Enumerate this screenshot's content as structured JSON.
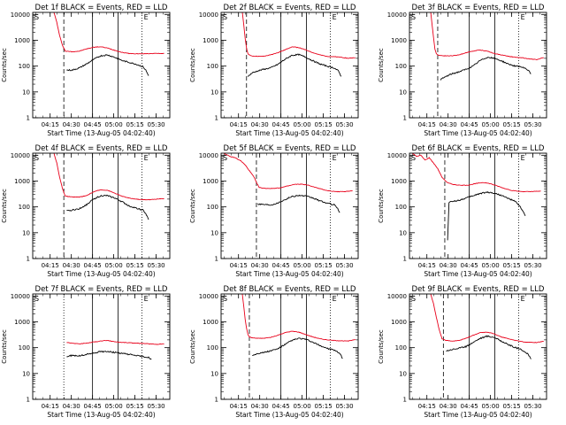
{
  "figure": {
    "colors": {
      "events": "#000000",
      "lld": "#e8001a",
      "axes": "#000000",
      "background": "#ffffff"
    },
    "common": {
      "ylabel": "Counts/sec",
      "xlabel": "Start Time (13-Aug-05 04:02:40)",
      "x_tick_labels": [
        "04:15",
        "04:30",
        "04:45",
        "05:00",
        "05:15",
        "05:30"
      ],
      "x_tick_minutes": [
        12.33,
        27.33,
        42.33,
        57.33,
        72.33,
        87.33
      ],
      "y_tick_labels": [
        "1",
        "10",
        "100",
        "1000",
        "10000"
      ],
      "y_tick_values": [
        1,
        10,
        100,
        1000,
        10000
      ],
      "xlim_minutes": [
        0,
        97
      ],
      "ylim": [
        1,
        12000
      ],
      "yscale": "log",
      "corner_marks": [
        "S",
        "E"
      ],
      "vertical_marker_minutes": {
        "solid": [
          42.33,
          60.33
        ],
        "dotted": [
          77.33
        ]
      }
    }
  },
  "chart_data": [
    {
      "type": "line",
      "title": "Det 1f BLACK = Events, RED = LLD",
      "x_unit": "minutes after 04:02:40",
      "yscale": "log",
      "markers": {
        "dashed": 22
      },
      "series": [
        {
          "name": "LLD",
          "color": "#e8001a",
          "x": [
            15,
            17,
            19,
            21,
            23,
            28,
            33,
            38,
            43,
            48,
            53,
            58,
            63,
            68,
            73,
            78,
            83,
            88,
            93
          ],
          "y": [
            12000,
            5000,
            1500,
            650,
            380,
            360,
            380,
            460,
            540,
            560,
            500,
            410,
            340,
            310,
            300,
            300,
            305,
            310,
            310
          ]
        },
        {
          "name": "Events",
          "color": "#000000",
          "x": [
            24,
            28,
            33,
            38,
            43,
            48,
            53,
            58,
            63,
            68,
            73,
            78,
            80,
            82
          ],
          "y": [
            70,
            70,
            85,
            120,
            180,
            250,
            270,
            220,
            165,
            140,
            120,
            95,
            70,
            42
          ]
        }
      ]
    },
    {
      "type": "line",
      "title": "Det 2f BLACK = Events, RED = LLD",
      "x_unit": "minutes after 04:02:40",
      "yscale": "log",
      "markers": {
        "dashed": 18
      },
      "series": [
        {
          "name": "LLD",
          "color": "#e8001a",
          "x": [
            15,
            16,
            17,
            18,
            19,
            21,
            25,
            30,
            35,
            40,
            45,
            50,
            55,
            60,
            65,
            70,
            75,
            80,
            85,
            90,
            95
          ],
          "y": [
            12000,
            4000,
            1200,
            500,
            300,
            250,
            240,
            240,
            270,
            330,
            420,
            560,
            520,
            420,
            330,
            270,
            240,
            230,
            220,
            200,
            215
          ]
        },
        {
          "name": "Events",
          "color": "#000000",
          "x": [
            19,
            22,
            26,
            30,
            35,
            40,
            45,
            50,
            55,
            60,
            65,
            70,
            75,
            80,
            83,
            85
          ],
          "y": [
            40,
            55,
            65,
            75,
            85,
            115,
            180,
            260,
            280,
            220,
            160,
            120,
            100,
            85,
            65,
            40
          ]
        }
      ]
    },
    {
      "type": "line",
      "title": "Det 3f BLACK = Events, RED = LLD",
      "x_unit": "minutes after 04:02:40",
      "yscale": "log",
      "markers": {
        "dashed": 20
      },
      "series": [
        {
          "name": "LLD",
          "color": "#e8001a",
          "x": [
            15,
            16,
            17,
            18,
            19,
            21,
            25,
            30,
            35,
            40,
            45,
            50,
            55,
            60,
            65,
            70,
            75,
            80,
            85,
            90,
            95
          ],
          "y": [
            12000,
            4000,
            1300,
            450,
            300,
            260,
            250,
            250,
            270,
            330,
            380,
            420,
            380,
            310,
            270,
            240,
            220,
            210,
            190,
            180,
            215
          ]
        },
        {
          "name": "Events",
          "color": "#000000",
          "x": [
            22,
            26,
            30,
            35,
            40,
            45,
            50,
            55,
            60,
            65,
            70,
            75,
            80,
            84,
            86
          ],
          "y": [
            30,
            40,
            50,
            60,
            75,
            100,
            165,
            220,
            200,
            160,
            120,
            100,
            90,
            70,
            50
          ]
        }
      ]
    },
    {
      "type": "line",
      "title": "Det 4f BLACK = Events, RED = LLD",
      "x_unit": "minutes after 04:02:40",
      "yscale": "log",
      "markers": {
        "dashed": 22
      },
      "series": [
        {
          "name": "LLD",
          "color": "#e8001a",
          "x": [
            15,
            17,
            19,
            21,
            23,
            28,
            33,
            38,
            43,
            48,
            53,
            58,
            63,
            68,
            73,
            78,
            83,
            88,
            93
          ],
          "y": [
            12000,
            5000,
            1400,
            520,
            260,
            240,
            240,
            270,
            380,
            460,
            440,
            340,
            260,
            220,
            200,
            190,
            190,
            200,
            210
          ]
        },
        {
          "name": "Events",
          "color": "#000000",
          "x": [
            24,
            28,
            33,
            38,
            43,
            48,
            53,
            58,
            63,
            68,
            73,
            78,
            80,
            82
          ],
          "y": [
            70,
            75,
            85,
            120,
            200,
            270,
            270,
            220,
            160,
            110,
            90,
            75,
            55,
            32
          ]
        }
      ]
    },
    {
      "type": "line",
      "title": "Det 5f BLACK = Events, RED = LLD",
      "x_unit": "minutes after 04:02:40",
      "yscale": "log",
      "markers": {
        "dashed": 25
      },
      "series": [
        {
          "name": "LLD",
          "color": "#e8001a",
          "x": [
            2,
            6,
            10,
            14,
            17,
            20,
            23,
            25,
            27,
            32,
            37,
            42,
            47,
            52,
            57,
            62,
            67,
            72,
            77,
            82,
            87,
            93
          ],
          "y": [
            12000,
            9000,
            8000,
            6000,
            4200,
            2500,
            1500,
            900,
            560,
            520,
            520,
            550,
            640,
            740,
            760,
            680,
            560,
            470,
            410,
            390,
            390,
            420
          ]
        },
        {
          "name": "Events",
          "color": "#000000",
          "x": [
            26,
            30,
            35,
            40,
            45,
            50,
            55,
            60,
            65,
            70,
            75,
            80,
            82,
            84
          ],
          "y": [
            130,
            125,
            120,
            140,
            190,
            250,
            280,
            260,
            220,
            170,
            140,
            120,
            95,
            60
          ]
        }
      ]
    },
    {
      "type": "line",
      "title": "Det 6f BLACK = Events, RED = LLD",
      "x_unit": "minutes after 04:02:40",
      "yscale": "log",
      "markers": {
        "dashed": 25
      },
      "series": [
        {
          "name": "LLD",
          "color": "#e8001a",
          "x": [
            2,
            5,
            8,
            11,
            14,
            17,
            20,
            23,
            27,
            32,
            37,
            42,
            47,
            52,
            57,
            62,
            67,
            72,
            77,
            82,
            87,
            93
          ],
          "y": [
            12000,
            9000,
            10000,
            6500,
            8000,
            5000,
            3000,
            1400,
            850,
            720,
            680,
            700,
            800,
            880,
            800,
            650,
            520,
            440,
            400,
            390,
            390,
            410
          ]
        },
        {
          "name": "Events",
          "color": "#000000",
          "x": [
            27,
            28,
            30,
            35,
            40,
            45,
            50,
            55,
            60,
            65,
            70,
            75,
            78,
            80,
            82
          ],
          "y": [
            5,
            150,
            160,
            180,
            220,
            270,
            330,
            370,
            340,
            280,
            210,
            160,
            110,
            70,
            45
          ]
        }
      ]
    },
    {
      "type": "line",
      "title": "Det 7f BLACK = Events, RED = LLD",
      "x_unit": "minutes after 04:02:40",
      "yscale": "log",
      "markers": {
        "dotted_start": 22
      },
      "series": [
        {
          "name": "LLD",
          "color": "#e8001a",
          "x": [
            24,
            28,
            33,
            38,
            43,
            48,
            53,
            58,
            63,
            68,
            73,
            78,
            83,
            88,
            93
          ],
          "y": [
            160,
            150,
            140,
            150,
            165,
            180,
            190,
            170,
            160,
            155,
            150,
            145,
            140,
            135,
            140
          ]
        },
        {
          "name": "Events",
          "color": "#000000",
          "x": [
            24,
            28,
            33,
            38,
            43,
            48,
            53,
            58,
            63,
            68,
            73,
            78,
            82,
            84
          ],
          "y": [
            45,
            50,
            48,
            55,
            62,
            70,
            72,
            65,
            60,
            55,
            50,
            45,
            42,
            35
          ]
        }
      ]
    },
    {
      "type": "line",
      "title": "Det 8f BLACK = Events, RED = LLD",
      "x_unit": "minutes after 04:02:40",
      "yscale": "log",
      "markers": {
        "dashed": 20
      },
      "series": [
        {
          "name": "LLD",
          "color": "#e8001a",
          "x": [
            15,
            16,
            17,
            18,
            19,
            20,
            22,
            26,
            30,
            35,
            40,
            45,
            50,
            55,
            60,
            65,
            70,
            75,
            80,
            85,
            90,
            95
          ],
          "y": [
            12000,
            4000,
            1300,
            550,
            320,
            260,
            240,
            230,
            230,
            250,
            300,
            380,
            430,
            400,
            320,
            260,
            220,
            200,
            190,
            185,
            180,
            210
          ]
        },
        {
          "name": "Events",
          "color": "#000000",
          "x": [
            22,
            26,
            30,
            35,
            40,
            45,
            50,
            55,
            60,
            65,
            70,
            75,
            80,
            84,
            86
          ],
          "y": [
            50,
            60,
            65,
            75,
            90,
            130,
            190,
            230,
            210,
            160,
            120,
            95,
            80,
            60,
            38
          ]
        }
      ]
    },
    {
      "type": "line",
      "title": "Det 9f BLACK = Events, RED = LLD",
      "x_unit": "minutes after 04:02:40",
      "yscale": "log",
      "markers": {
        "dashed": 24
      },
      "series": [
        {
          "name": "LLD",
          "color": "#e8001a",
          "x": [
            15,
            17,
            19,
            21,
            23,
            26,
            30,
            35,
            40,
            45,
            50,
            55,
            60,
            65,
            70,
            75,
            80,
            85,
            90,
            95
          ],
          "y": [
            12000,
            5000,
            1500,
            500,
            220,
            190,
            180,
            190,
            230,
            300,
            380,
            400,
            340,
            260,
            220,
            190,
            170,
            160,
            160,
            175
          ]
        },
        {
          "name": "Events",
          "color": "#000000",
          "x": [
            26,
            30,
            35,
            40,
            45,
            50,
            55,
            60,
            65,
            70,
            75,
            80,
            84,
            86
          ],
          "y": [
            75,
            85,
            95,
            110,
            160,
            230,
            280,
            250,
            180,
            130,
            100,
            80,
            55,
            36
          ]
        }
      ]
    }
  ]
}
